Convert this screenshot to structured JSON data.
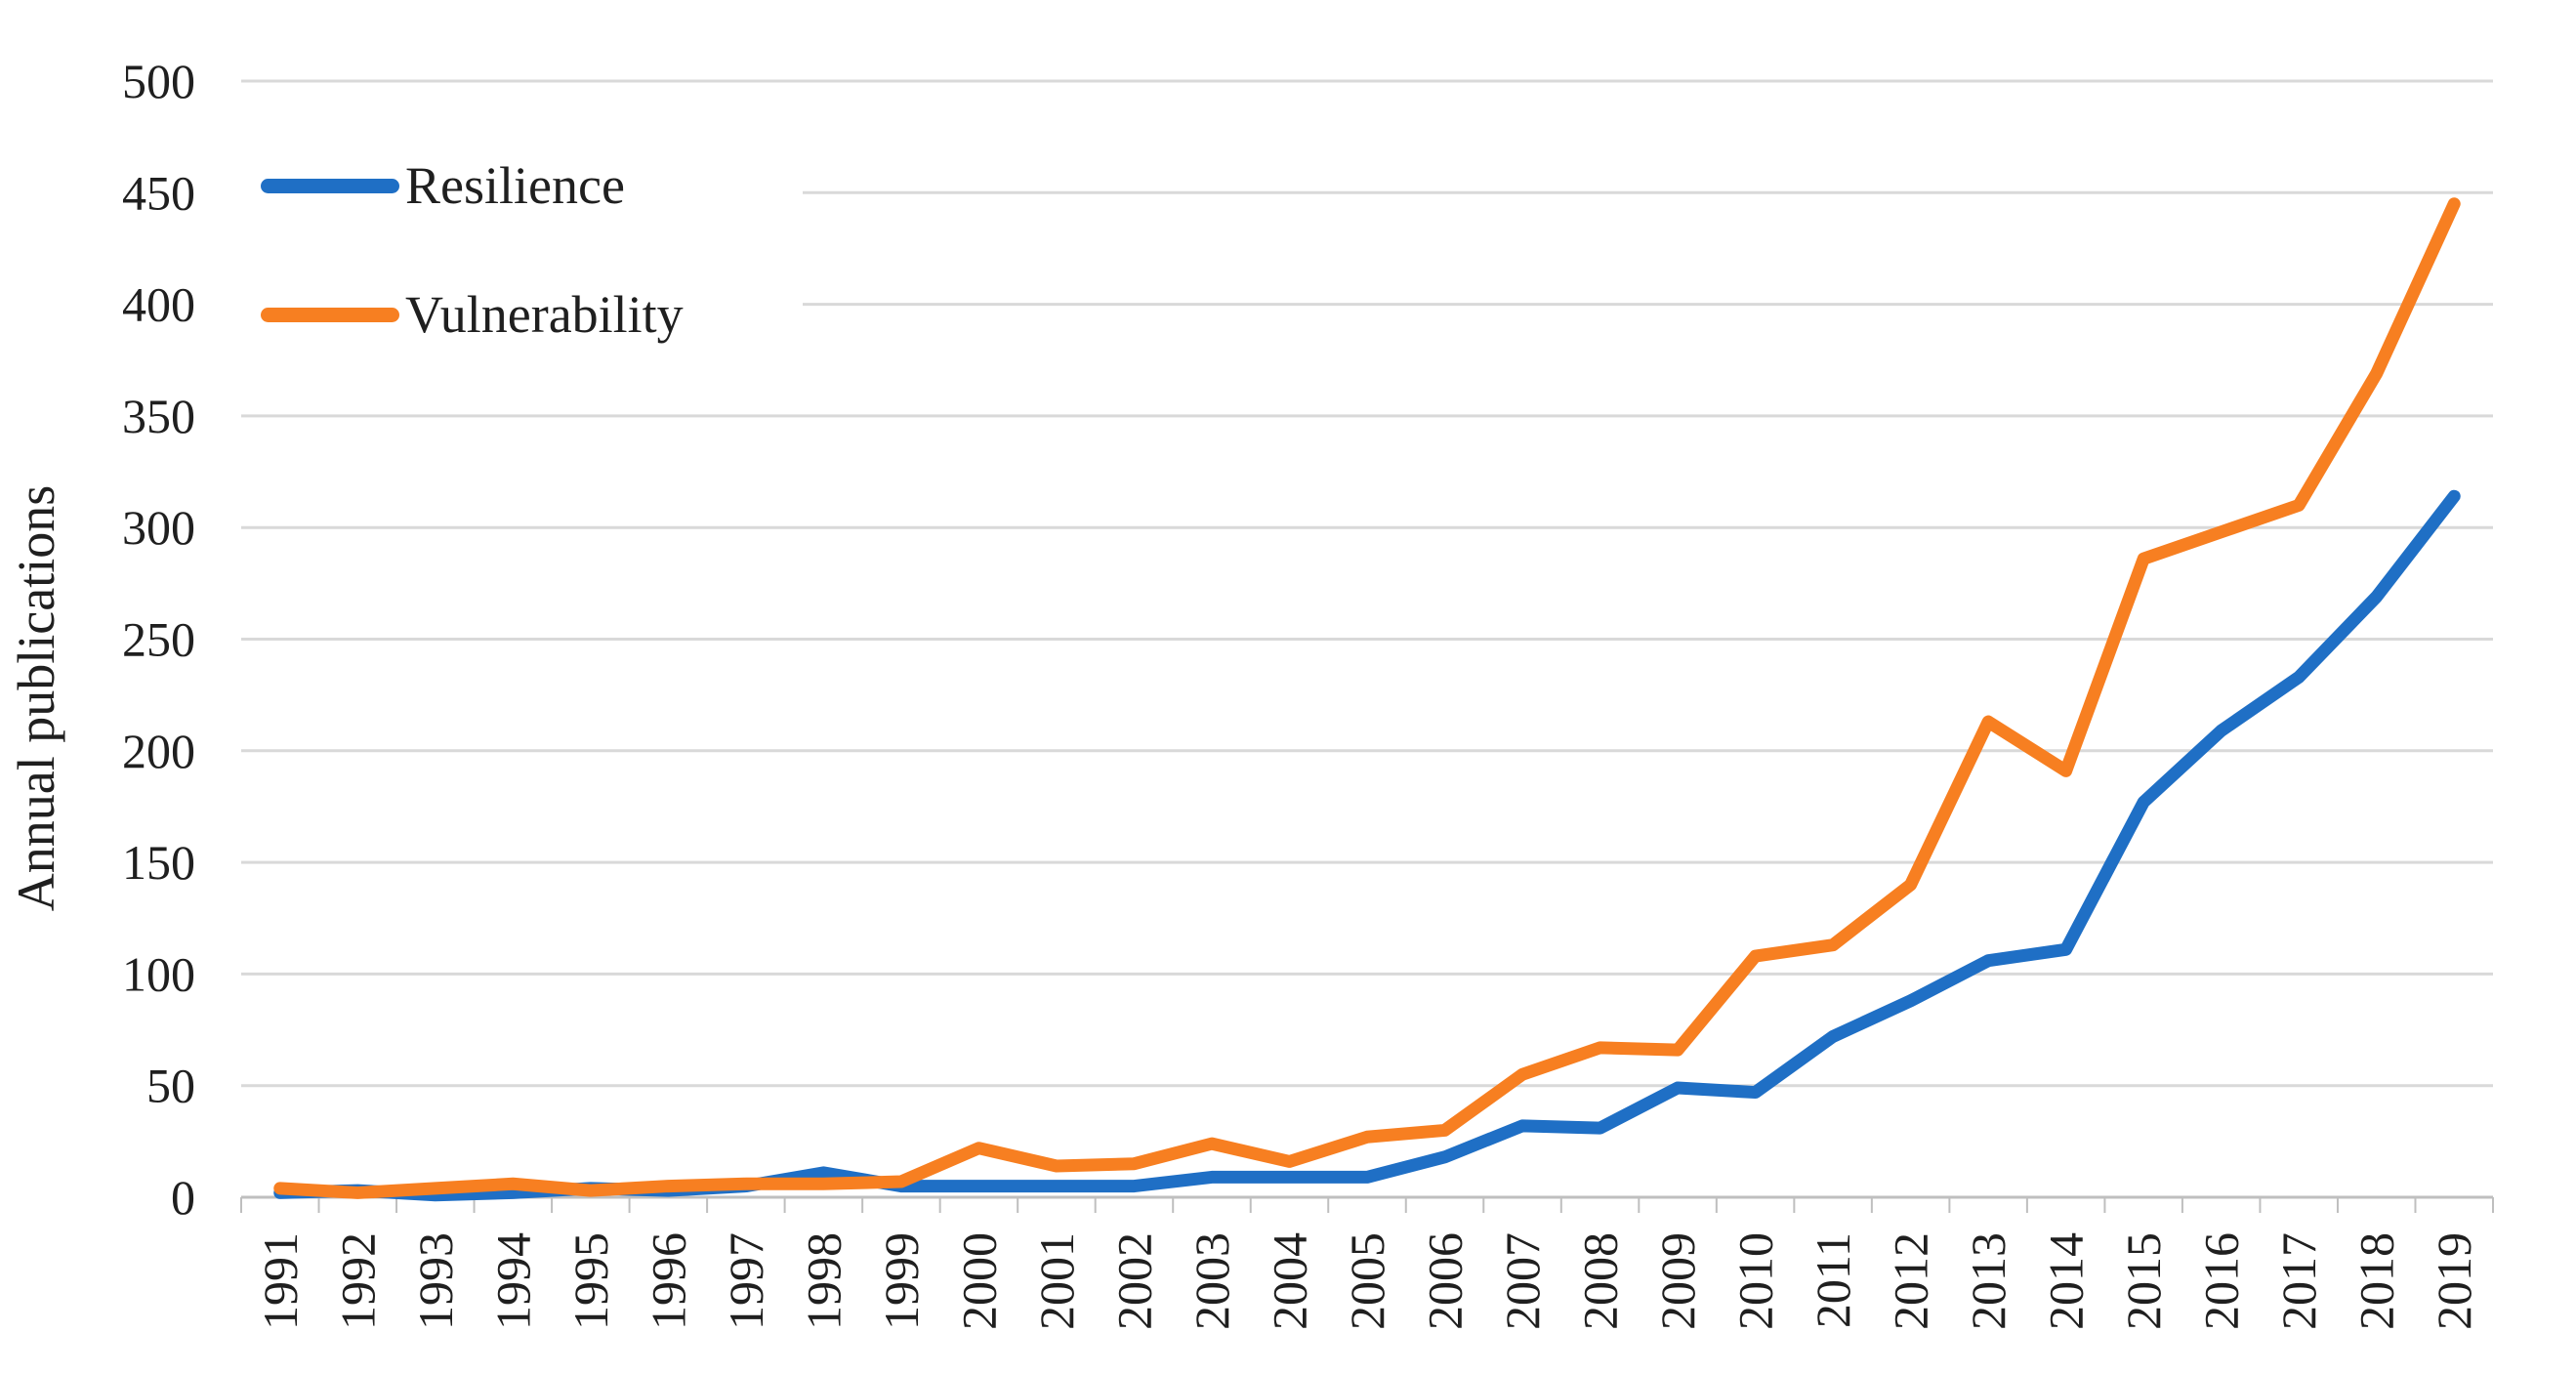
{
  "chart_data": {
    "type": "line",
    "title": "",
    "xlabel": "",
    "ylabel": "Annual publications",
    "categories": [
      "1991",
      "1992",
      "1993",
      "1994",
      "1995",
      "1996",
      "1997",
      "1998",
      "1999",
      "2000",
      "2001",
      "2002",
      "2003",
      "2004",
      "2005",
      "2006",
      "2007",
      "2008",
      "2009",
      "2010",
      "2011",
      "2012",
      "2013",
      "2014",
      "2015",
      "2016",
      "2017",
      "2018",
      "2019"
    ],
    "series": [
      {
        "name": "Resilience",
        "color": "#1F6FC5",
        "values": [
          2,
          3,
          1,
          2,
          4,
          3,
          5,
          11,
          5,
          5,
          5,
          5,
          9,
          9,
          9,
          18,
          32,
          31,
          49,
          47,
          72,
          88,
          106,
          111,
          177,
          209,
          233,
          269,
          314
        ]
      },
      {
        "name": "Vulnerability",
        "color": "#F77F21",
        "values": [
          4,
          2,
          4,
          6,
          3,
          5,
          6,
          6,
          7,
          22,
          14,
          15,
          24,
          16,
          27,
          30,
          55,
          67,
          66,
          108,
          113,
          140,
          213,
          191,
          286,
          298,
          310,
          369,
          445
        ]
      }
    ],
    "ylim": [
      0,
      500
    ],
    "yticks": [
      0,
      50,
      100,
      150,
      200,
      250,
      300,
      350,
      400,
      450,
      500
    ],
    "grid": "horizontal",
    "legend_position": "top-left-inside",
    "colors": {
      "gridline": "#D9D9D9",
      "axis_line": "#BFBFBF",
      "tick_mark": "#BFBFBF",
      "label_text": "#1f1f1f"
    }
  }
}
